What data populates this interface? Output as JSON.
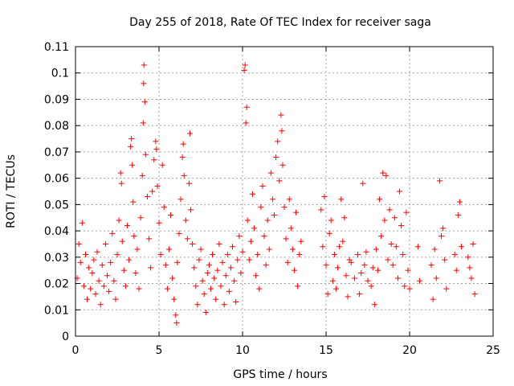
{
  "chart_data": {
    "type": "scatter",
    "title": "Day 255 of 2018, Rate Of TEC Index for receiver saga",
    "xlabel": "GPS time / hours",
    "ylabel": "ROTI / TECUs",
    "xlim": [
      0,
      25
    ],
    "ylim": [
      0,
      0.11
    ],
    "xticks": [
      "0",
      "5",
      "10",
      "15",
      "20",
      "25"
    ],
    "yticks": [
      "0",
      "0.01",
      "0.02",
      "0.03",
      "0.04",
      "0.05",
      "0.06",
      "0.07",
      "0.08",
      "0.09",
      "0.1",
      "0.11"
    ],
    "grid": true,
    "marker": "plus",
    "color": "#ff0000",
    "series": [
      {
        "points": [
          [
            0.1,
            0.022
          ],
          [
            0.2,
            0.035
          ],
          [
            0.3,
            0.028
          ],
          [
            0.4,
            0.043
          ],
          [
            0.5,
            0.019
          ],
          [
            0.6,
            0.031
          ],
          [
            0.7,
            0.014
          ],
          [
            0.8,
            0.026
          ],
          [
            0.9,
            0.018
          ],
          [
            1.0,
            0.024
          ],
          [
            1.1,
            0.029
          ],
          [
            1.2,
            0.016
          ],
          [
            1.3,
            0.032
          ],
          [
            1.4,
            0.021
          ],
          [
            1.5,
            0.012
          ],
          [
            1.6,
            0.027
          ],
          [
            1.7,
            0.019
          ],
          [
            1.8,
            0.035
          ],
          [
            1.9,
            0.023
          ],
          [
            2.0,
            0.017
          ],
          [
            2.1,
            0.028
          ],
          [
            2.2,
            0.039
          ],
          [
            2.3,
            0.021
          ],
          [
            2.4,
            0.014
          ],
          [
            2.5,
            0.031
          ],
          [
            2.6,
            0.044
          ],
          [
            2.7,
            0.062
          ],
          [
            2.75,
            0.058
          ],
          [
            2.8,
            0.036
          ],
          [
            2.9,
            0.025
          ],
          [
            3.0,
            0.019
          ],
          [
            3.1,
            0.042
          ],
          [
            3.2,
            0.029
          ],
          [
            3.3,
            0.072
          ],
          [
            3.35,
            0.075
          ],
          [
            3.4,
            0.065
          ],
          [
            3.45,
            0.051
          ],
          [
            3.5,
            0.038
          ],
          [
            3.6,
            0.024
          ],
          [
            3.7,
            0.033
          ],
          [
            3.8,
            0.018
          ],
          [
            3.9,
            0.045
          ],
          [
            4.0,
            0.061
          ],
          [
            4.05,
            0.081
          ],
          [
            4.08,
            0.096
          ],
          [
            4.1,
            0.103
          ],
          [
            4.15,
            0.089
          ],
          [
            4.2,
            0.069
          ],
          [
            4.3,
            0.053
          ],
          [
            4.4,
            0.037
          ],
          [
            4.5,
            0.026
          ],
          [
            4.6,
            0.055
          ],
          [
            4.7,
            0.067
          ],
          [
            4.8,
            0.074
          ],
          [
            4.85,
            0.071
          ],
          [
            4.9,
            0.057
          ],
          [
            5.0,
            0.043
          ],
          [
            5.1,
            0.031
          ],
          [
            5.2,
            0.065
          ],
          [
            5.3,
            0.049
          ],
          [
            5.4,
            0.027
          ],
          [
            5.5,
            0.018
          ],
          [
            5.6,
            0.033
          ],
          [
            5.7,
            0.046
          ],
          [
            5.8,
            0.022
          ],
          [
            5.9,
            0.014
          ],
          [
            6.0,
            0.008
          ],
          [
            6.05,
            0.005
          ],
          [
            6.1,
            0.028
          ],
          [
            6.2,
            0.039
          ],
          [
            6.3,
            0.052
          ],
          [
            6.4,
            0.068
          ],
          [
            6.45,
            0.073
          ],
          [
            6.5,
            0.061
          ],
          [
            6.6,
            0.044
          ],
          [
            6.7,
            0.037
          ],
          [
            6.8,
            0.058
          ],
          [
            6.85,
            0.077
          ],
          [
            6.9,
            0.048
          ],
          [
            7.0,
            0.035
          ],
          [
            7.1,
            0.026
          ],
          [
            7.2,
            0.019
          ],
          [
            7.3,
            0.012
          ],
          [
            7.4,
            0.029
          ],
          [
            7.5,
            0.033
          ],
          [
            7.6,
            0.021
          ],
          [
            7.7,
            0.016
          ],
          [
            7.8,
            0.009
          ],
          [
            7.9,
            0.024
          ],
          [
            8.0,
            0.027
          ],
          [
            8.1,
            0.018
          ],
          [
            8.2,
            0.031
          ],
          [
            8.3,
            0.022
          ],
          [
            8.4,
            0.014
          ],
          [
            8.5,
            0.025
          ],
          [
            8.6,
            0.035
          ],
          [
            8.7,
            0.019
          ],
          [
            8.8,
            0.028
          ],
          [
            8.9,
            0.012
          ],
          [
            9.0,
            0.023
          ],
          [
            9.1,
            0.031
          ],
          [
            9.2,
            0.017
          ],
          [
            9.3,
            0.026
          ],
          [
            9.4,
            0.034
          ],
          [
            9.5,
            0.021
          ],
          [
            9.6,
            0.013
          ],
          [
            9.7,
            0.029
          ],
          [
            9.8,
            0.038
          ],
          [
            9.9,
            0.024
          ],
          [
            10.0,
            0.032
          ],
          [
            10.1,
            0.101
          ],
          [
            10.15,
            0.103
          ],
          [
            10.2,
            0.081
          ],
          [
            10.25,
            0.087
          ],
          [
            10.3,
            0.044
          ],
          [
            10.4,
            0.029
          ],
          [
            10.5,
            0.036
          ],
          [
            10.6,
            0.054
          ],
          [
            10.7,
            0.041
          ],
          [
            10.8,
            0.023
          ],
          [
            10.9,
            0.031
          ],
          [
            11.0,
            0.018
          ],
          [
            11.1,
            0.049
          ],
          [
            11.2,
            0.057
          ],
          [
            11.3,
            0.038
          ],
          [
            11.4,
            0.027
          ],
          [
            11.5,
            0.044
          ],
          [
            11.6,
            0.033
          ],
          [
            11.7,
            0.062
          ],
          [
            11.8,
            0.052
          ],
          [
            11.9,
            0.046
          ],
          [
            12.0,
            0.068
          ],
          [
            12.1,
            0.074
          ],
          [
            12.2,
            0.059
          ],
          [
            12.3,
            0.084
          ],
          [
            12.35,
            0.078
          ],
          [
            12.4,
            0.065
          ],
          [
            12.5,
            0.049
          ],
          [
            12.6,
            0.037
          ],
          [
            12.7,
            0.028
          ],
          [
            12.8,
            0.052
          ],
          [
            12.9,
            0.041
          ],
          [
            13.0,
            0.033
          ],
          [
            13.1,
            0.025
          ],
          [
            13.2,
            0.047
          ],
          [
            13.3,
            0.019
          ],
          [
            13.4,
            0.031
          ],
          [
            13.5,
            0.036
          ],
          [
            14.7,
            0.048
          ],
          [
            14.8,
            0.034
          ],
          [
            14.9,
            0.053
          ],
          [
            15.0,
            0.027
          ],
          [
            15.1,
            0.016
          ],
          [
            15.2,
            0.039
          ],
          [
            15.3,
            0.044
          ],
          [
            15.4,
            0.021
          ],
          [
            15.5,
            0.031
          ],
          [
            15.6,
            0.018
          ],
          [
            15.7,
            0.026
          ],
          [
            15.8,
            0.034
          ],
          [
            15.9,
            0.052
          ],
          [
            16.0,
            0.036
          ],
          [
            16.1,
            0.045
          ],
          [
            16.2,
            0.023
          ],
          [
            16.3,
            0.015
          ],
          [
            16.4,
            0.029
          ],
          [
            16.5,
            0.028
          ],
          [
            16.7,
            0.022
          ],
          [
            16.9,
            0.031
          ],
          [
            17.0,
            0.016
          ],
          [
            17.1,
            0.024
          ],
          [
            17.2,
            0.058
          ],
          [
            17.3,
            0.027
          ],
          [
            17.4,
            0.032
          ],
          [
            17.5,
            0.021
          ],
          [
            17.7,
            0.019
          ],
          [
            17.8,
            0.026
          ],
          [
            17.9,
            0.012
          ],
          [
            18.0,
            0.033
          ],
          [
            18.1,
            0.025
          ],
          [
            18.2,
            0.052
          ],
          [
            18.3,
            0.038
          ],
          [
            18.4,
            0.062
          ],
          [
            18.5,
            0.044
          ],
          [
            18.6,
            0.061
          ],
          [
            18.7,
            0.029
          ],
          [
            18.8,
            0.048
          ],
          [
            18.9,
            0.035
          ],
          [
            19.0,
            0.027
          ],
          [
            19.1,
            0.045
          ],
          [
            19.2,
            0.034
          ],
          [
            19.3,
            0.022
          ],
          [
            19.4,
            0.055
          ],
          [
            19.5,
            0.042
          ],
          [
            19.6,
            0.031
          ],
          [
            19.7,
            0.019
          ],
          [
            19.8,
            0.047
          ],
          [
            19.9,
            0.025
          ],
          [
            20.0,
            0.018
          ],
          [
            20.5,
            0.034
          ],
          [
            20.6,
            0.021
          ],
          [
            21.3,
            0.027
          ],
          [
            21.4,
            0.014
          ],
          [
            21.5,
            0.033
          ],
          [
            21.6,
            0.022
          ],
          [
            21.8,
            0.059
          ],
          [
            21.9,
            0.038
          ],
          [
            22.0,
            0.041
          ],
          [
            22.1,
            0.029
          ],
          [
            22.2,
            0.018
          ],
          [
            22.7,
            0.031
          ],
          [
            22.8,
            0.025
          ],
          [
            22.9,
            0.046
          ],
          [
            23.0,
            0.051
          ],
          [
            23.1,
            0.034
          ],
          [
            23.5,
            0.03
          ],
          [
            23.6,
            0.026
          ],
          [
            23.7,
            0.022
          ],
          [
            23.8,
            0.035
          ],
          [
            23.9,
            0.016
          ]
        ]
      }
    ]
  }
}
